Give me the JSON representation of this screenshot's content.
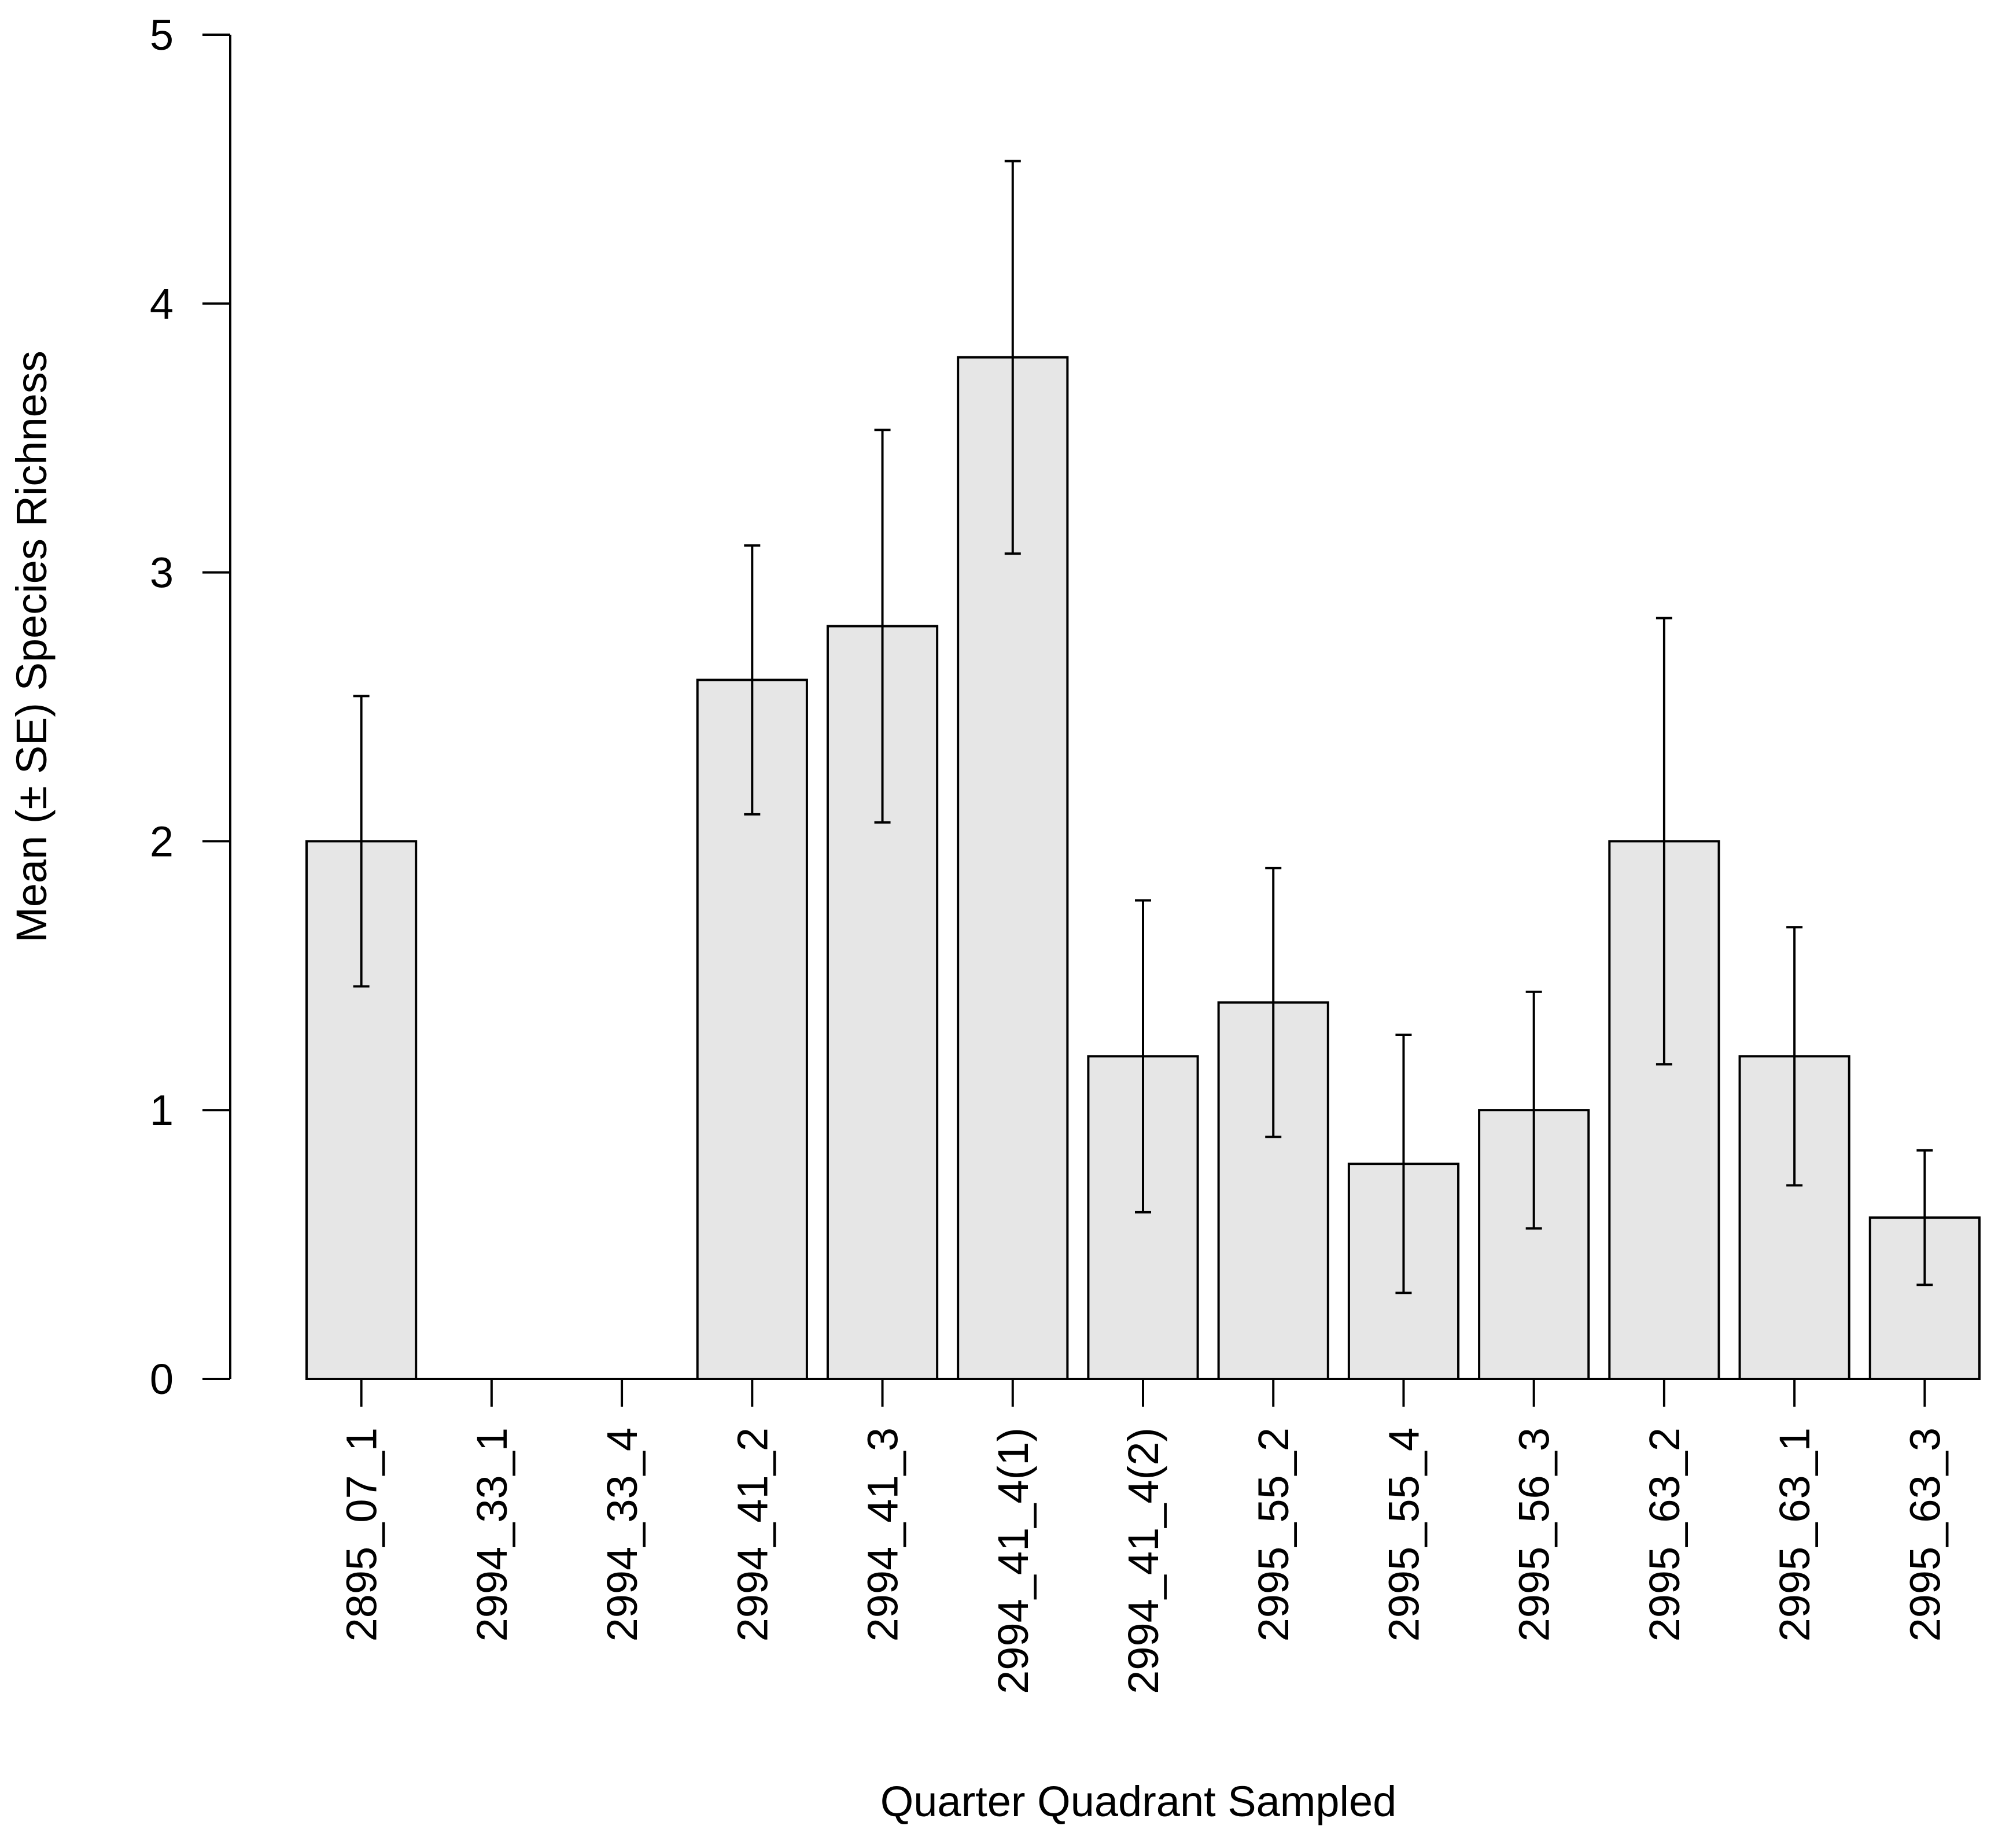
{
  "chart_data": {
    "type": "bar",
    "title": "",
    "xlabel": "Quarter Quadrant Sampled",
    "ylabel": "Mean (± SE) Species Richness",
    "ylim": [
      0,
      5
    ],
    "yticks": [
      0,
      1,
      2,
      3,
      4,
      5
    ],
    "categories": [
      "2895_07_1",
      "2994_33_1",
      "2994_33_4",
      "2994_41_2",
      "2994_41_3",
      "2994_41_4(1)",
      "2994_41_4(2)",
      "2995_55_2",
      "2995_55_4",
      "2995_56_3",
      "2995_63_2",
      "2995_63_1",
      "2995_63_3"
    ],
    "values": [
      2.0,
      0,
      0,
      2.6,
      2.8,
      3.8,
      1.2,
      1.4,
      0.8,
      1.0,
      2.0,
      1.2,
      0.6
    ],
    "errors": [
      0.54,
      null,
      null,
      0.5,
      0.73,
      0.73,
      0.58,
      0.5,
      0.48,
      0.44,
      0.83,
      0.48,
      0.25
    ],
    "bar_color": "#e6e6e6",
    "edge_color": "#000000"
  }
}
